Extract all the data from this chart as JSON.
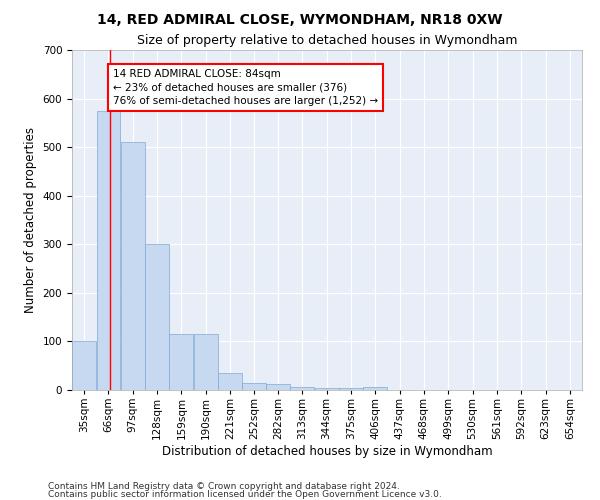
{
  "title": "14, RED ADMIRAL CLOSE, WYMONDHAM, NR18 0XW",
  "subtitle": "Size of property relative to detached houses in Wymondham",
  "xlabel": "Distribution of detached houses by size in Wymondham",
  "ylabel": "Number of detached properties",
  "footnote1": "Contains HM Land Registry data © Crown copyright and database right 2024.",
  "footnote2": "Contains public sector information licensed under the Open Government Licence v3.0.",
  "bar_edges": [
    35,
    66,
    97,
    128,
    159,
    190,
    221,
    252,
    282,
    313,
    344,
    375,
    406,
    437,
    468,
    499,
    530,
    561,
    592,
    623,
    654
  ],
  "bar_heights": [
    100,
    575,
    510,
    300,
    115,
    115,
    35,
    15,
    12,
    7,
    5,
    5,
    7,
    0,
    0,
    0,
    0,
    0,
    0,
    0
  ],
  "bar_color": "#c7d9f0",
  "bar_edge_color": "#7fa8d4",
  "property_size": 84,
  "red_line_x": 84,
  "annotation_text": "14 RED ADMIRAL CLOSE: 84sqm\n← 23% of detached houses are smaller (376)\n76% of semi-detached houses are larger (1,252) →",
  "annotation_box_color": "white",
  "annotation_box_edge_color": "red",
  "ylim": [
    0,
    700
  ],
  "yticks": [
    0,
    100,
    200,
    300,
    400,
    500,
    600,
    700
  ],
  "plot_bg_color": "#e8eef7",
  "grid_color": "white",
  "title_fontsize": 10,
  "subtitle_fontsize": 9,
  "label_fontsize": 8.5,
  "tick_fontsize": 7.5,
  "footnote_fontsize": 6.5,
  "annot_fontsize": 7.5
}
